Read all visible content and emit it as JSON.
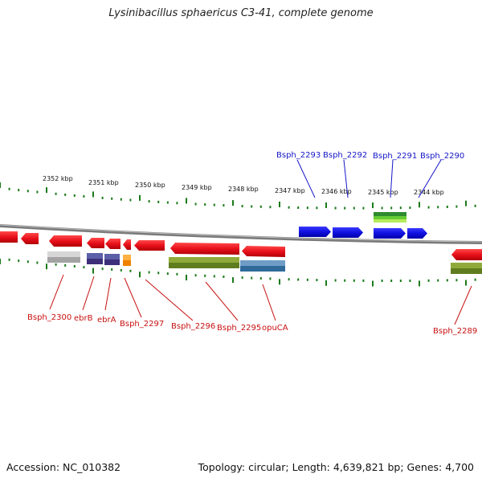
{
  "title": "Lysinibacillus sphaericus C3-41, complete genome",
  "footer": {
    "accession": "Accession: NC_010382",
    "summary": "Topology: circular; Length: 4,639,821 bp; Genes: 4,700"
  },
  "colors": {
    "forward_gene": "#1010e0",
    "reverse_gene": "#e8101a",
    "forward_label": "#1515c8",
    "reverse_label": "#c81010",
    "backbone": "#808080",
    "tick": "#1a7a1a"
  },
  "ticks": [
    "2352 kbp",
    "2351 kbp",
    "2350 kbp",
    "2349 kbp",
    "2348 kbp",
    "2347 kbp",
    "2346 kbp",
    "2345 kbp",
    "2344 kbp"
  ],
  "forward_genes": [
    {
      "label": "Bsph_2293"
    },
    {
      "label": "Bsph_2292"
    },
    {
      "label": "Bsph_2291"
    },
    {
      "label": "Bsph_2290"
    }
  ],
  "reverse_genes": [
    {
      "label": "Bsph_2300"
    },
    {
      "label": "ebrB"
    },
    {
      "label": "ebrA"
    },
    {
      "label": "Bsph_2297"
    },
    {
      "label": "Bsph_2296"
    },
    {
      "label": "Bsph_2295"
    },
    {
      "label": "opuCA"
    },
    {
      "label": "Bsph_2289"
    }
  ]
}
